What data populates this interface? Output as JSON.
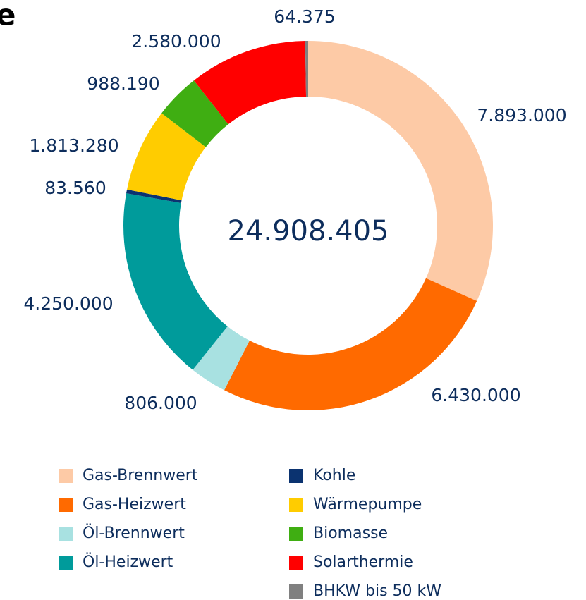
{
  "chart_data": {
    "type": "donut",
    "title": "e",
    "categories": [
      "Gas-Brennwert",
      "Gas-Heizwert",
      "Öl-Brennwert",
      "Öl-Heizwert",
      "Kohle",
      "Wärmepumpe",
      "Biomasse",
      "Solarthermie",
      "BHKW bis 50 kW"
    ],
    "values": [
      7893000,
      6430000,
      806000,
      4250000,
      83560,
      1813280,
      988190,
      2580000,
      64375
    ],
    "value_labels": [
      "7.893.000",
      "6.430.000",
      "806.000",
      "4.250.000",
      "83.560",
      "1.813.280",
      "988.190",
      "2.580.000",
      "64.375"
    ],
    "colors": [
      "#fdcaa6",
      "#ff6a00",
      "#a8e1e1",
      "#009b9b",
      "#0b3370",
      "#ffcc00",
      "#3fae12",
      "#ff0000",
      "#808080"
    ],
    "total": {
      "value": 24908405,
      "label": "24.908.405"
    }
  }
}
